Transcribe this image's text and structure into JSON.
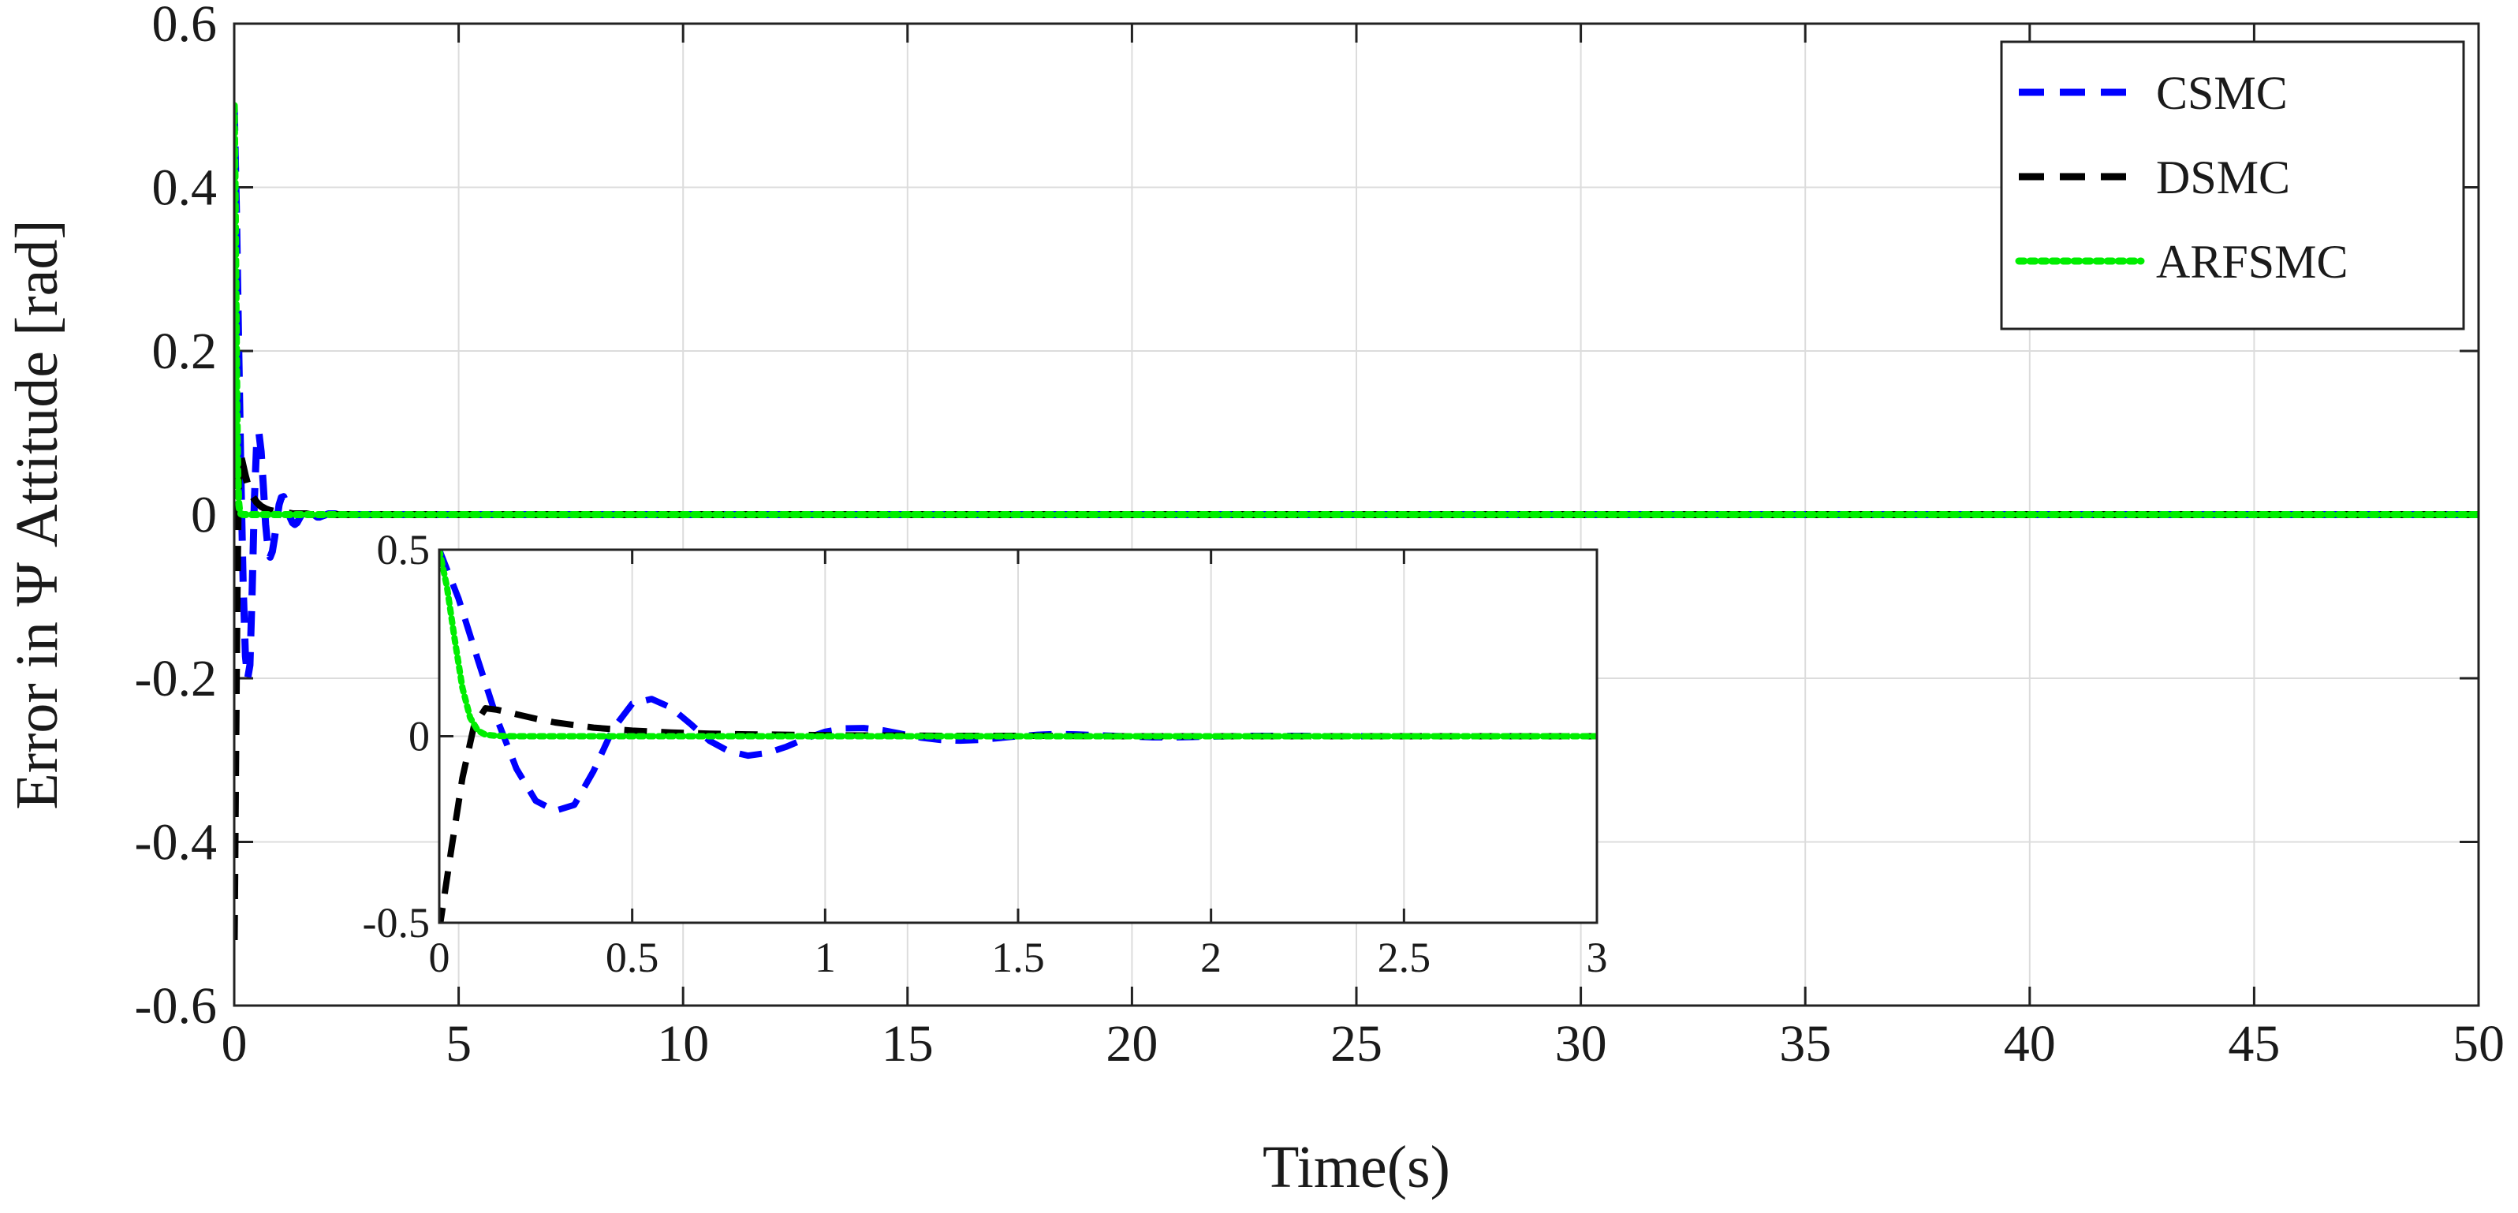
{
  "chart_data": [
    {
      "id": "main",
      "type": "line",
      "title": "",
      "xlabel": "Time(s)",
      "ylabel": "Error in Ψ Attitude [rad]",
      "xlim": [
        0,
        50
      ],
      "ylim": [
        -0.6,
        0.6
      ],
      "xticks": [
        0,
        5,
        10,
        15,
        20,
        25,
        30,
        35,
        40,
        45,
        50
      ],
      "yticks": [
        -0.6,
        -0.4,
        -0.2,
        0,
        0.2,
        0.4,
        0.6
      ],
      "xtick_labels": [
        "0",
        "5",
        "10",
        "15",
        "20",
        "25",
        "30",
        "35",
        "40",
        "45",
        "50"
      ],
      "ytick_labels": [
        "-0.6",
        "-0.4",
        "-0.2",
        "0",
        "0.2",
        "0.4",
        "0.6"
      ],
      "grid": true,
      "legend_position": "top-right",
      "series": [
        {
          "name": "CSMC",
          "color": "#0000ff",
          "style": "dashed",
          "x": [
            0,
            0.05,
            0.1,
            0.15,
            0.2,
            0.25,
            0.3,
            0.35,
            0.4,
            0.45,
            0.5,
            0.55,
            0.6,
            0.65,
            0.7,
            0.75,
            0.8,
            0.85,
            0.9,
            0.95,
            1.0,
            1.05,
            1.1,
            1.15,
            1.2,
            1.25,
            1.3,
            1.35,
            1.4,
            1.45,
            1.5,
            1.55,
            1.6,
            1.65,
            1.7,
            1.75,
            1.8,
            1.85,
            1.9,
            1.95,
            2.0,
            2.05,
            2.1,
            2.15,
            2.2,
            2.25,
            2.3,
            2.35,
            2.4,
            2.45,
            2.5,
            2.55,
            2.6,
            2.65,
            2.7,
            2.75,
            2.8,
            2.85,
            2.9,
            2.95,
            3.0,
            50
          ],
          "values": [
            0.5,
            0.369,
            0.205,
            0.045,
            -0.087,
            -0.173,
            -0.2,
            -0.184,
            -0.093,
            0.019,
            0.087,
            0.1,
            0.077,
            0.034,
            -0.012,
            -0.04,
            -0.052,
            -0.045,
            -0.028,
            -0.006,
            0.012,
            0.021,
            0.022,
            0.016,
            0.006,
            -0.004,
            -0.01,
            -0.012,
            -0.01,
            -0.005,
            0.0,
            0.004,
            0.006,
            0.005,
            0.003,
            0.001,
            -0.001,
            -0.003,
            -0.003,
            -0.002,
            -0.001,
            0.0,
            0.001,
            0.001,
            0.001,
            0.001,
            0.0,
            0.0,
            0.0,
            0.0,
            0.0,
            0.0,
            0.0,
            0.0,
            0.0,
            0.0,
            0.0,
            0.0,
            0.0,
            0.0,
            0.0,
            0.0
          ]
        },
        {
          "name": "DSMC",
          "color": "#000000",
          "style": "dashed",
          "x": [
            0,
            0.03,
            0.06,
            0.09,
            0.12,
            0.15,
            0.2,
            0.25,
            0.3,
            0.4,
            0.5,
            0.6,
            0.7,
            0.8,
            0.9,
            1.0,
            1.1,
            1.2,
            1.3,
            1.4,
            1.5,
            1.6,
            1.7,
            1.8,
            1.9,
            2.0,
            2.2,
            2.4,
            2.6,
            2.8,
            3.0,
            50
          ],
          "values": [
            -0.52,
            -0.312,
            -0.112,
            0.028,
            0.075,
            0.071,
            0.059,
            0.047,
            0.037,
            0.023,
            0.015,
            0.01,
            0.007,
            0.005,
            0.004,
            0.003,
            0.002,
            0.002,
            0.001,
            0.001,
            0.001,
            0.001,
            0.0,
            0.0,
            0.0,
            0.0,
            0.0,
            0.0,
            0.0,
            0.0,
            0.0,
            0.0
          ]
        },
        {
          "name": "ARFSMC",
          "color": "#00ee00",
          "style": "dotted",
          "x": [
            0,
            0.02,
            0.04,
            0.06,
            0.08,
            0.1,
            0.12,
            0.15,
            0.2,
            0.3,
            0.5,
            1.0,
            2.0,
            3.0,
            50
          ],
          "values": [
            0.5,
            0.4,
            0.26,
            0.13,
            0.05,
            0.015,
            0.004,
            0.001,
            0.0,
            0.0,
            0.0,
            0.0,
            0.0,
            0.0,
            0.0
          ]
        }
      ]
    },
    {
      "id": "inset",
      "type": "line",
      "title": "",
      "xlabel": "",
      "ylabel": "",
      "xlim": [
        0,
        3
      ],
      "ylim": [
        -0.5,
        0.5
      ],
      "xticks": [
        0,
        0.5,
        1,
        1.5,
        2,
        2.5,
        3
      ],
      "yticks": [
        -0.5,
        0,
        0.5
      ],
      "xtick_labels": [
        "0",
        "0.5",
        "1",
        "1.5",
        "2",
        "2.5",
        "3"
      ],
      "ytick_labels": [
        "-0.5",
        "0",
        "0.5"
      ],
      "grid": true,
      "series_ref": "main"
    }
  ]
}
